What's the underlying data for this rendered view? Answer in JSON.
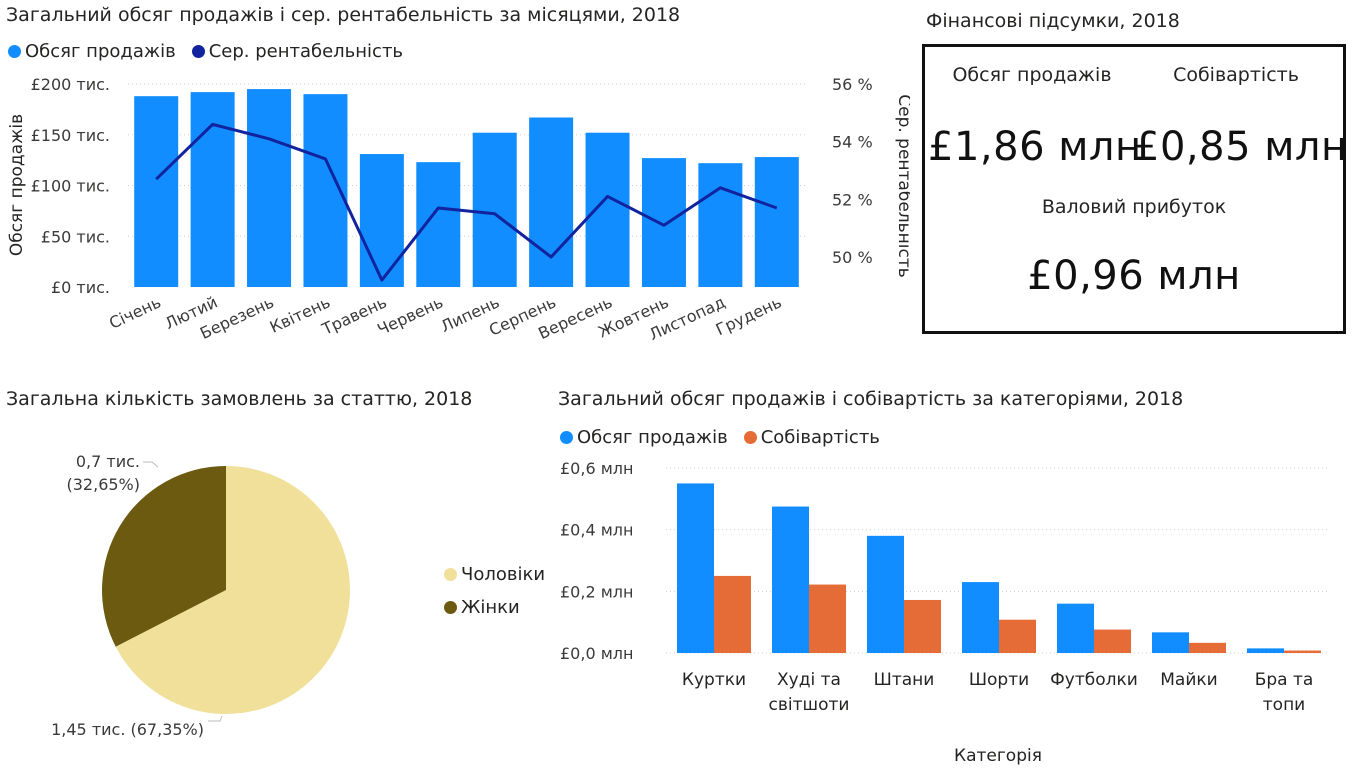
{
  "monthly_chart": {
    "title": "Загальний обсяг продажів і сер. рентабельність за місяцями, 2018",
    "legend": [
      {
        "name": "Обсяг продажів",
        "color": "#118DFF"
      },
      {
        "name": "Сер. рентабельність",
        "color": "#12239E"
      }
    ],
    "y_left_label": "Обсяг продажів",
    "y_right_label": "Сер. рентабельність",
    "y_left_ticks": [
      "£0 тис.",
      "£50 тис.",
      "£100 тис.",
      "£150 тис.",
      "£200 тис."
    ],
    "y_right_ticks": [
      "50 %",
      "52 %",
      "54 %",
      "56 %"
    ]
  },
  "finance_card": {
    "title": "Фінансові підсумки, 2018",
    "sales_label": "Обсяг продажів",
    "sales_value": "£1,86 млн",
    "cost_label": "Собівартість",
    "cost_value": "£0,85 млн",
    "profit_label": "Валовий прибуток",
    "profit_value": "£0,96 млн"
  },
  "pie_chart": {
    "title": "Загальна кількість замовлень за статтю, 2018",
    "label_women_value": "0,7 тис.",
    "label_women_pct": "(32,65%)",
    "label_men": "1,45 тис. (67,35%)",
    "legend": [
      {
        "name": "Чоловіки",
        "color": "#F0E09A"
      },
      {
        "name": "Жінки",
        "color": "#6B5A10"
      }
    ]
  },
  "category_chart": {
    "title": "Загальний обсяг продажів і собівартість за категоріями, 2018",
    "legend": [
      {
        "name": "Обсяг продажів",
        "color": "#118DFF"
      },
      {
        "name": "Собівартість",
        "color": "#E66C37"
      }
    ],
    "x_axis_label": "Категорія",
    "y_ticks": [
      "£0,0 млн",
      "£0,2 млн",
      "£0,4 млн",
      "£0,6 млн"
    ]
  },
  "chart_data": [
    {
      "type": "bar",
      "subtype": "bar+line combo",
      "title": "Загальний обсяг продажів і сер. рентабельність за місяцями, 2018",
      "categories": [
        "Січень",
        "Лютий",
        "Березень",
        "Квітень",
        "Травень",
        "Червень",
        "Липень",
        "Серпень",
        "Вересень",
        "Жовтень",
        "Листопад",
        "Грудень"
      ],
      "series": [
        {
          "name": "Обсяг продажів",
          "axis": "left",
          "unit": "тис. £",
          "values": [
            188,
            192,
            195,
            190,
            131,
            123,
            152,
            167,
            152,
            127,
            122,
            128
          ]
        },
        {
          "name": "Сер. рентабельність",
          "axis": "right",
          "unit": "%",
          "type": "line",
          "values": [
            52.7,
            54.6,
            54.1,
            53.4,
            49.2,
            51.7,
            51.5,
            50.0,
            52.1,
            51.1,
            52.4,
            51.7
          ]
        }
      ],
      "ylabel": "Обсяг продажів",
      "ylabel_right": "Сер. рентабельність",
      "ylim": [
        0,
        200
      ],
      "ylim_right": [
        49,
        56
      ],
      "grid": true,
      "legend_position": "top-left"
    },
    {
      "type": "pie",
      "title": "Загальна кількість замовлень за статтю, 2018",
      "categories": [
        "Чоловіки",
        "Жінки"
      ],
      "values": [
        1.45,
        0.7
      ],
      "percentages": [
        67.35,
        32.65
      ],
      "unit": "тис.",
      "colors": [
        "#F0E09A",
        "#6B5A10"
      ],
      "legend_position": "right"
    },
    {
      "type": "bar",
      "title": "Загальний обсяг продажів і собівартість за категоріями, 2018",
      "categories": [
        "Куртки",
        "Худі та світшоти",
        "Штани",
        "Шорти",
        "Футболки",
        "Майки",
        "Бра та топи"
      ],
      "category_lines": [
        [
          "Куртки"
        ],
        [
          "Худі та",
          "світшоти"
        ],
        [
          "Штани"
        ],
        [
          "Шорти"
        ],
        [
          "Футболки"
        ],
        [
          "Майки"
        ],
        [
          "Бра та",
          "топи"
        ]
      ],
      "series": [
        {
          "name": "Обсяг продажів",
          "values": [
            0.55,
            0.475,
            0.38,
            0.23,
            0.16,
            0.067,
            0.015
          ]
        },
        {
          "name": "Собівартість",
          "values": [
            0.25,
            0.222,
            0.172,
            0.108,
            0.076,
            0.033,
            0.008
          ]
        }
      ],
      "unit": "млн £",
      "xlabel": "Категорія",
      "ylim": [
        0,
        0.6
      ],
      "grid": true,
      "legend_position": "top-left"
    }
  ]
}
